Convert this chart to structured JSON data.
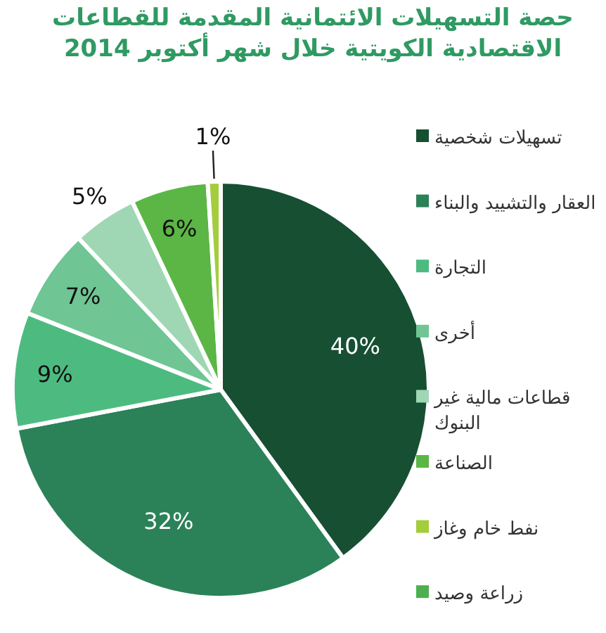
{
  "chart_data": {
    "type": "pie",
    "title": "حصة التسهيلات الائتمانية المقدمة للقطاعات الاقتصادية الكويتية خلال  شهر أكتوبر 2014",
    "categories": [
      "تسهيلات شخصية",
      "العقار والتشييد والبناء",
      "التجارة",
      "أخرى",
      "قطاعات مالية غير البنوك",
      "الصناعة",
      "نفط خام وغاز",
      "زراعة وصيد"
    ],
    "values": [
      40,
      32,
      9,
      7,
      5,
      6,
      1,
      0
    ],
    "colors": [
      "#174f33",
      "#2b8258",
      "#4dbb80",
      "#6fc593",
      "#9fd7b4",
      "#5bb645",
      "#a3cd3c",
      "#4daf4f"
    ],
    "value_labels": [
      "40%",
      "32%",
      "9%",
      "7%",
      "5%",
      "6%",
      "1%",
      null
    ],
    "legend": "right"
  }
}
